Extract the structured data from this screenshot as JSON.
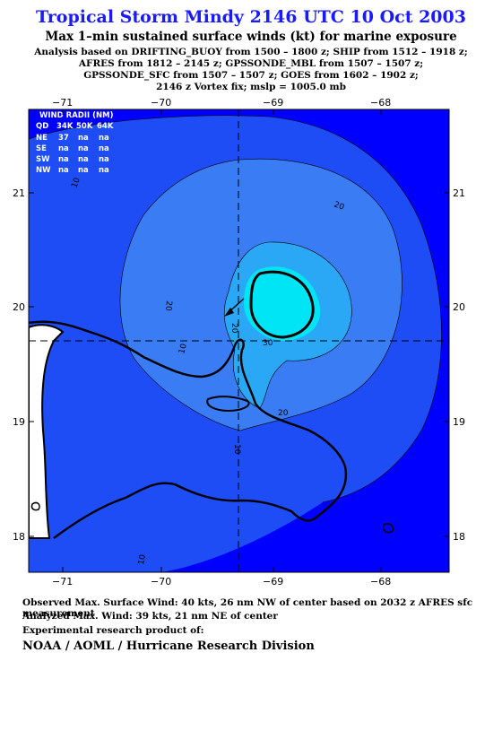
{
  "title": "Tropical Storm Mindy 2146 UTC 10 Oct 2003",
  "subtitle": "Max 1–min sustained surface winds (kt) for marine exposure",
  "analysis_lines": [
    "Analysis based on  DRIFTING_BUOY from 1500 – 1800 z;  SHIP from 1512 – 1918 z;",
    "AFRES from 1812 – 2145 z;  GPSSONDE_MBL from 1507 – 1507 z;",
    "GPSSONDE_SFC from 1507 – 1507 z;  GOES from 1602 – 1902 z;",
    "2146 z Vortex fix; mslp = 1005.0 mb"
  ],
  "map": {
    "lon_ticks": [
      "−71",
      "−70",
      "−69",
      "−68"
    ],
    "lat_ticks": [
      "21",
      "20",
      "19",
      "18"
    ],
    "contour_labels": [
      "10",
      "10",
      "10",
      "20",
      "20",
      "20",
      "30",
      "20",
      "10"
    ],
    "colors": {
      "ocean": "#0000ff",
      "band10": "#1e4cf5",
      "band20": "#3a7cf3",
      "band30": "#2aa8f5",
      "core": "#00e5f5",
      "land": "#ffffff"
    }
  },
  "wind_radii": {
    "title": "WIND RADII (NM)",
    "headers": [
      "QD",
      "34K",
      "50K",
      "64K"
    ],
    "rows": [
      [
        "NE",
        "37",
        "na",
        "na"
      ],
      [
        "SE",
        "na",
        "na",
        "na"
      ],
      [
        "SW",
        "na",
        "na",
        "na"
      ],
      [
        "NW",
        "na",
        "na",
        "na"
      ]
    ]
  },
  "footer": {
    "observed": "Observed Max. Surface Wind: 40 kts, 26 nm NW of center based on 2032 z AFRES sfc measurement",
    "analyzed": "Analyzed Max. Wind: 39 kts, 21 nm NE of center",
    "experimental": "Experimental research product of:",
    "org": "NOAA / AOML / Hurricane Research Division"
  }
}
